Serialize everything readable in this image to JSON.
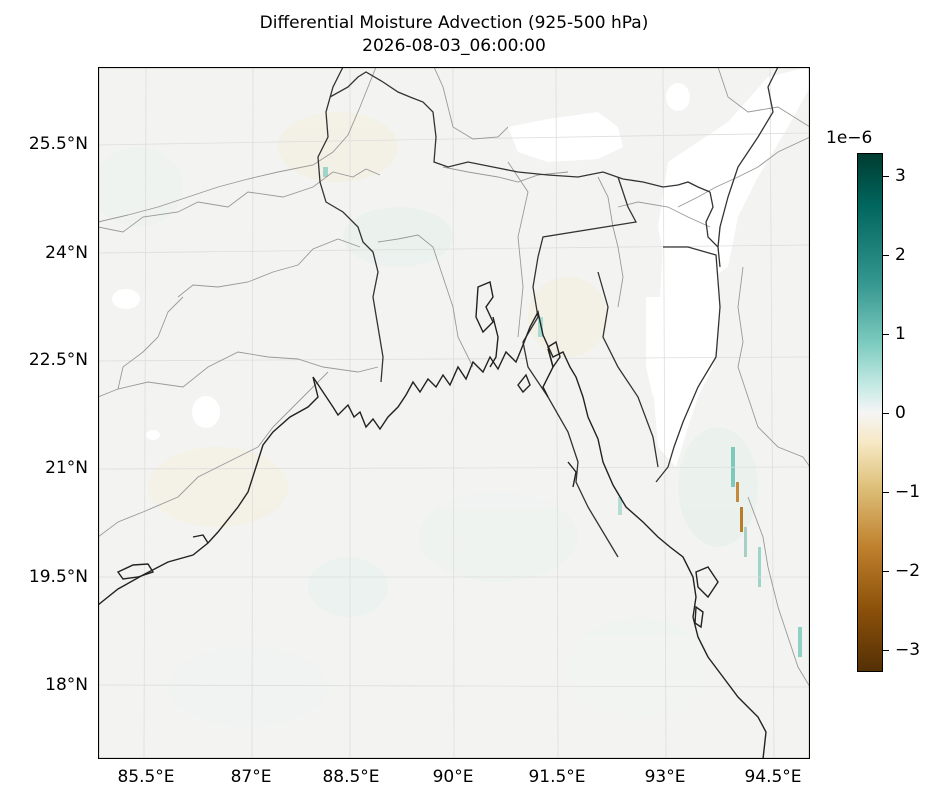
{
  "title": {
    "line1": "Differential Moisture Advection (925-500 hPa)",
    "line2": "2026-08-03_06:00:00"
  },
  "lat_labels": [
    "25.5°N",
    "24°N",
    "22.5°N",
    "21°N",
    "19.5°N",
    "18°N"
  ],
  "lon_labels": [
    "85.5°E",
    "87°E",
    "88.5°E",
    "90°E",
    "91.5°E",
    "93°E",
    "94.5°E"
  ],
  "colorbar": {
    "exponent": "1e−6",
    "ticks": [
      "3",
      "2",
      "1",
      "0",
      "−1",
      "−2",
      "−3"
    ],
    "colormap": "BrBG",
    "range": [
      -3.3,
      3.3
    ]
  },
  "colors": {
    "coastline": "#222222",
    "borders": "#999999",
    "gridlines": "#dddddd",
    "background_field": "#f3f4f1"
  }
}
